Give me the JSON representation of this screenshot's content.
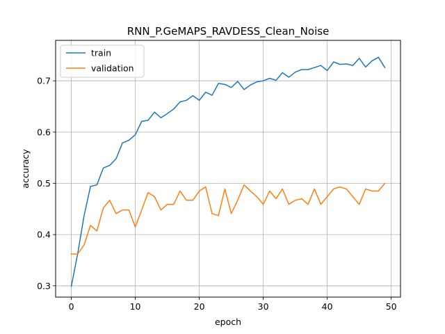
{
  "chart_data": {
    "type": "line",
    "title": "RNN_P.GeMAPS_RAVDESS_Clean_Noise",
    "xlabel": "epoch",
    "ylabel": "accuracy",
    "xlim": [
      -2.45,
      51.45
    ],
    "ylim": [
      0.278,
      0.779
    ],
    "xticks": [
      0,
      10,
      20,
      30,
      40,
      50
    ],
    "yticks": [
      0.3,
      0.4,
      0.5,
      0.6,
      0.7
    ],
    "ytick_labels": [
      "0.3",
      "0.4",
      "0.5",
      "0.6",
      "0.7"
    ],
    "grid": true,
    "legend_position": "upper left",
    "series": [
      {
        "name": "train",
        "color": "#1f77b4",
        "x": [
          0,
          1,
          2,
          3,
          4,
          5,
          6,
          7,
          8,
          9,
          10,
          11,
          12,
          13,
          14,
          15,
          16,
          17,
          18,
          19,
          20,
          21,
          22,
          23,
          24,
          25,
          26,
          27,
          28,
          29,
          30,
          31,
          32,
          33,
          34,
          35,
          36,
          37,
          38,
          39,
          40,
          41,
          42,
          43,
          44,
          45,
          46,
          47,
          48,
          49
        ],
        "values": [
          0.299,
          0.363,
          0.437,
          0.494,
          0.497,
          0.53,
          0.535,
          0.548,
          0.579,
          0.584,
          0.595,
          0.621,
          0.623,
          0.639,
          0.628,
          0.636,
          0.645,
          0.659,
          0.662,
          0.671,
          0.662,
          0.678,
          0.672,
          0.695,
          0.693,
          0.687,
          0.699,
          0.683,
          0.692,
          0.698,
          0.7,
          0.705,
          0.701,
          0.716,
          0.707,
          0.717,
          0.722,
          0.722,
          0.726,
          0.73,
          0.72,
          0.737,
          0.732,
          0.733,
          0.73,
          0.744,
          0.727,
          0.739,
          0.746,
          0.726
        ]
      },
      {
        "name": "validation",
        "color": "#ff7f0e",
        "x": [
          0,
          1,
          2,
          3,
          4,
          5,
          6,
          7,
          8,
          9,
          10,
          11,
          12,
          13,
          14,
          15,
          16,
          17,
          18,
          19,
          20,
          21,
          22,
          23,
          24,
          25,
          26,
          27,
          28,
          29,
          30,
          31,
          32,
          33,
          34,
          35,
          36,
          37,
          38,
          39,
          40,
          41,
          42,
          43,
          44,
          45,
          46,
          47,
          48,
          49
        ],
        "values": [
          0.362,
          0.362,
          0.38,
          0.418,
          0.407,
          0.452,
          0.467,
          0.441,
          0.448,
          0.448,
          0.415,
          0.448,
          0.482,
          0.474,
          0.448,
          0.459,
          0.459,
          0.485,
          0.467,
          0.467,
          0.485,
          0.493,
          0.441,
          0.437,
          0.489,
          0.441,
          0.467,
          0.497,
          0.485,
          0.474,
          0.459,
          0.485,
          0.47,
          0.489,
          0.459,
          0.467,
          0.47,
          0.459,
          0.489,
          0.459,
          0.474,
          0.489,
          0.493,
          0.489,
          0.474,
          0.459,
          0.489,
          0.485,
          0.485,
          0.5
        ]
      }
    ]
  }
}
